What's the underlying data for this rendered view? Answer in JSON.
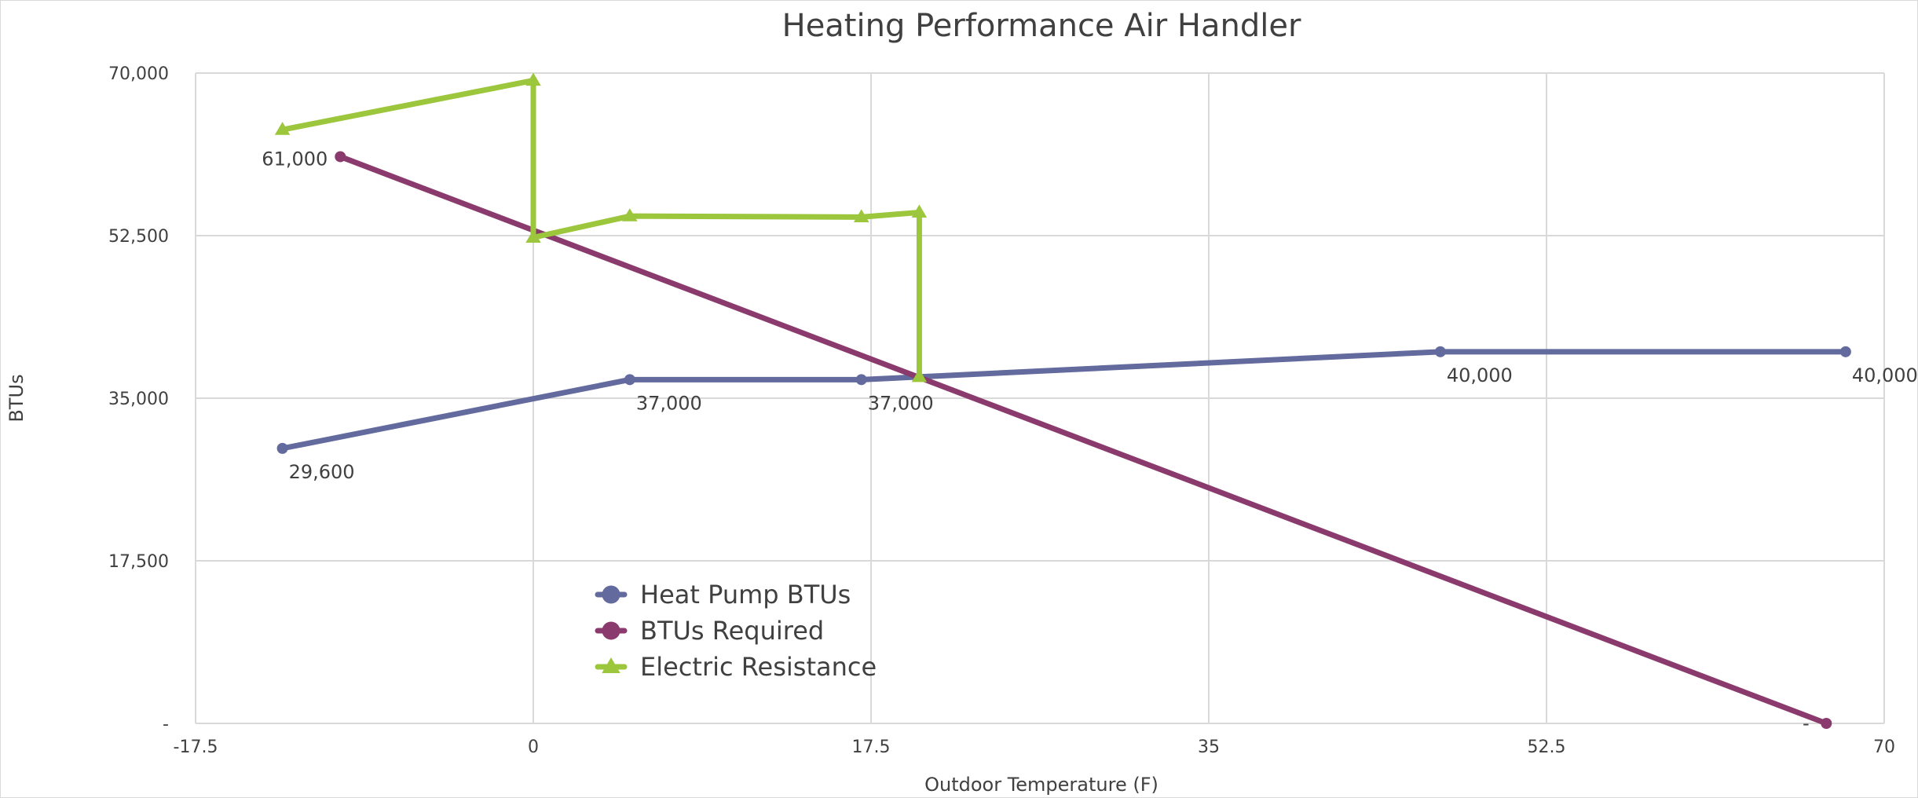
{
  "chart_data": {
    "type": "scatter",
    "title": "Heating  Performance Air Handler",
    "xlabel": "Outdoor Temperature (F)",
    "ylabel": "BTUs",
    "xlim": [
      -17.5,
      70
    ],
    "ylim": [
      0,
      70000
    ],
    "x_ticks": [
      -17.5,
      0,
      17.5,
      35,
      52.5,
      70
    ],
    "x_tick_labels": [
      "-17.5",
      "0",
      "17.5",
      "35",
      "52.5",
      "70"
    ],
    "y_ticks": [
      0,
      17500,
      35000,
      52500,
      70000
    ],
    "y_tick_labels": [
      "-",
      "17,500",
      "35,000",
      "52,500",
      "70,000"
    ],
    "grid": true,
    "legend_position": "inside lower-left",
    "series": [
      {
        "name": "Heat Pump BTUs",
        "color": "#636a9d",
        "marker": "circle",
        "x": [
          -13,
          5,
          17,
          47,
          68
        ],
        "y": [
          29600,
          37000,
          37000,
          40000,
          40000
        ],
        "labels": [
          "29,600",
          "37,000",
          "37,000",
          "40,000",
          "40,000"
        ]
      },
      {
        "name": "BTUs Required",
        "color": "#8a3a6c",
        "marker": "circle",
        "x": [
          -10,
          67
        ],
        "y": [
          61000,
          0
        ],
        "labels": [
          "61,000",
          "-"
        ]
      },
      {
        "name": "Electric Resistance",
        "color": "#9cc63b",
        "marker": "triangle",
        "x": [
          -13,
          0,
          0,
          5,
          17,
          20,
          20
        ],
        "y": [
          63900,
          69200,
          52300,
          54600,
          54500,
          55000,
          37300
        ]
      }
    ]
  }
}
